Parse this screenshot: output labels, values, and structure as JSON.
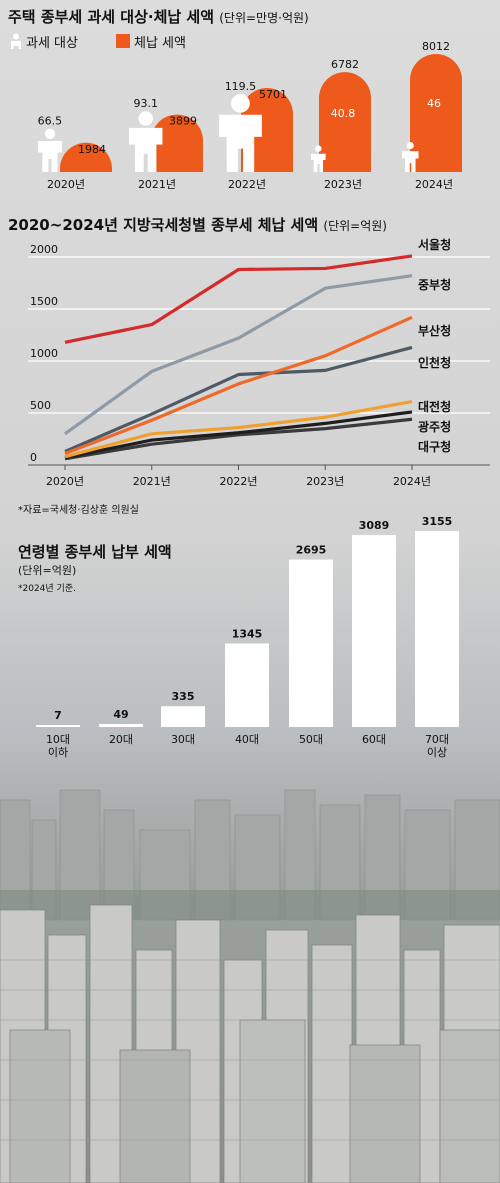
{
  "colors": {
    "orange": "#ee5a1c",
    "white": "#ffffff",
    "panel": "#dadada"
  },
  "section1": {
    "title": "주택 종부세 과세 대상·체납 세액",
    "unit": "(단위=만명·억원)",
    "legend": {
      "taxpayers": "과세 대상",
      "arrears": "체납 세액"
    }
  },
  "section2": {
    "title": "2020~2024년 지방국세청별 종부세 체납 세액",
    "unit": "(단위=억원)",
    "source": "*자료=국세청·김상훈 의원실"
  },
  "section3": {
    "title": "연령별 종부세 납부 세액",
    "unit": "(단위=억원)",
    "note": "*2024년 기준."
  },
  "chart_data": [
    {
      "type": "bar",
      "title": "주택 종부세 과세 대상·체납 세액",
      "categories": [
        "2020년",
        "2021년",
        "2022년",
        "2023년",
        "2024년"
      ],
      "series": [
        {
          "name": "과세 대상",
          "values": [
            66.5,
            93.1,
            119.5,
            40.8,
            46
          ],
          "labels": [
            "66.5",
            "93.1",
            "119.5",
            "40.8",
            "46"
          ]
        },
        {
          "name": "체납 세액",
          "values": [
            1984,
            3899,
            5701,
            6782,
            8012
          ],
          "labels": [
            "1984",
            "3899",
            "5701",
            "6782",
            "8012"
          ]
        }
      ]
    },
    {
      "type": "line",
      "title": "2020~2024년 지방국세청별 종부세 체납 세액",
      "x": [
        "2020년",
        "2021년",
        "2022년",
        "2023년",
        "2024년"
      ],
      "ylim": [
        0,
        2000
      ],
      "yticks": [
        0,
        500,
        1000,
        1500,
        2000
      ],
      "grid": true,
      "series": [
        {
          "name": "서울청",
          "color": "#d42a2a",
          "values": [
            1180,
            1350,
            1880,
            1890,
            2010
          ]
        },
        {
          "name": "중부청",
          "color": "#8e9aa6",
          "values": [
            300,
            900,
            1220,
            1700,
            1820
          ]
        },
        {
          "name": "부산청",
          "color": "#ee6a2a",
          "values": [
            110,
            430,
            780,
            1050,
            1420
          ]
        },
        {
          "name": "인천청",
          "color": "#4e5a66",
          "values": [
            130,
            490,
            870,
            910,
            1130
          ]
        },
        {
          "name": "대전청",
          "color": "#f0a030",
          "values": [
            80,
            300,
            360,
            460,
            610
          ]
        },
        {
          "name": "광주청",
          "color": "#1e1e1e",
          "values": [
            70,
            240,
            310,
            400,
            510
          ]
        },
        {
          "name": "대구청",
          "color": "#3a3a3a",
          "values": [
            60,
            200,
            290,
            350,
            440
          ]
        }
      ]
    },
    {
      "type": "bar",
      "title": "연령별 종부세 납부 세액",
      "categories": [
        "10대 이하",
        "20대",
        "30대",
        "40대",
        "50대",
        "60대",
        "70대 이상"
      ],
      "category_lines": [
        [
          "10대",
          "이하"
        ],
        [
          "20대"
        ],
        [
          "30대"
        ],
        [
          "40대"
        ],
        [
          "50대"
        ],
        [
          "60대"
        ],
        [
          "70대",
          "이상"
        ]
      ],
      "values": [
        7,
        49,
        335,
        1345,
        2695,
        3089,
        3155
      ],
      "labels": [
        "7",
        "49",
        "335",
        "1345",
        "2695",
        "3089",
        "3155"
      ]
    }
  ]
}
